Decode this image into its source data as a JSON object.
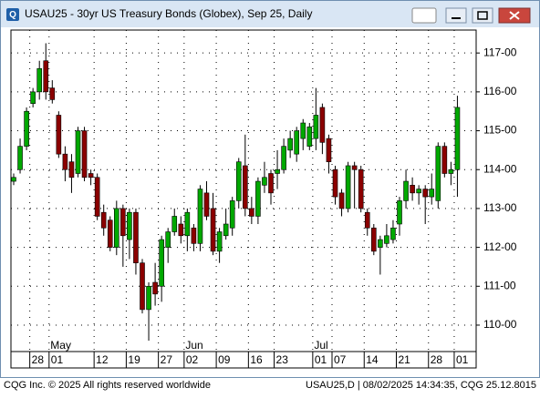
{
  "window": {
    "title": "USAU25 - 30yr US Treasury Bonds (Globex), Sep 25, Daily"
  },
  "chart_data": {
    "type": "candlestick",
    "categories": [
      null,
      null,
      null,
      "28",
      null,
      null,
      "01",
      null,
      null,
      null,
      null,
      null,
      null,
      "12",
      null,
      null,
      null,
      null,
      "19",
      null,
      null,
      null,
      null,
      "27",
      null,
      null,
      null,
      "02",
      null,
      null,
      null,
      null,
      "09",
      null,
      null,
      null,
      null,
      "16",
      null,
      null,
      null,
      "23",
      null,
      null,
      null,
      null,
      null,
      "01",
      null,
      null,
      "07",
      null,
      null,
      null,
      null,
      "14",
      null,
      null,
      null,
      null,
      "21",
      null,
      null,
      null,
      null,
      "28",
      null,
      null,
      null,
      "01"
    ],
    "months": [
      null,
      null,
      null,
      null,
      null,
      null,
      "May",
      null,
      null,
      null,
      null,
      null,
      null,
      null,
      null,
      null,
      null,
      null,
      null,
      null,
      null,
      null,
      null,
      null,
      null,
      null,
      null,
      "Jun",
      null,
      null,
      null,
      null,
      null,
      null,
      null,
      null,
      null,
      null,
      null,
      null,
      null,
      null,
      null,
      null,
      null,
      null,
      null,
      "Jul",
      null,
      null,
      null,
      null,
      null,
      null,
      null,
      null,
      null,
      null,
      null,
      null,
      null,
      null,
      null,
      null,
      null,
      null,
      null,
      null,
      null,
      null
    ],
    "open": [
      113.7,
      114.0,
      114.6,
      115.7,
      116.0,
      116.8,
      116.1,
      115.4,
      114.4,
      114.2,
      113.9,
      115.0,
      113.9,
      113.8,
      112.9,
      112.7,
      112.0,
      113.0,
      112.2,
      112.9,
      111.6,
      110.4,
      111.1,
      111.0,
      112.0,
      112.4,
      112.6,
      112.3,
      112.5,
      112.1,
      113.4,
      113.0,
      111.9,
      112.3,
      112.5,
      113.2,
      114.1,
      113.0,
      112.8,
      113.6,
      113.9,
      113.9,
      114.0,
      114.5,
      114.4,
      114.8,
      114.6,
      114.8,
      115.6,
      114.8,
      114.0,
      113.4,
      113.0,
      114.1,
      114.0,
      112.9,
      112.5,
      112.0,
      112.1,
      112.2,
      112.6,
      113.2,
      113.6,
      113.4,
      113.5,
      113.3,
      113.2,
      114.6,
      113.9,
      114.0
    ],
    "high": [
      113.9,
      114.8,
      115.6,
      116.1,
      116.8,
      117.25,
      116.3,
      115.5,
      114.6,
      114.4,
      115.1,
      115.1,
      114.0,
      113.9,
      113.1,
      112.8,
      113.2,
      113.1,
      113.0,
      113.0,
      111.7,
      111.1,
      111.6,
      112.3,
      112.5,
      113.0,
      112.8,
      113.0,
      112.6,
      113.6,
      113.7,
      113.4,
      112.5,
      113.0,
      113.3,
      114.3,
      114.9,
      113.3,
      113.8,
      114.2,
      114.0,
      114.5,
      114.8,
      115.0,
      115.1,
      115.3,
      115.2,
      116.1,
      115.7,
      114.9,
      114.1,
      113.5,
      114.2,
      114.2,
      114.1,
      113.0,
      112.6,
      112.3,
      112.6,
      112.7,
      113.3,
      114.0,
      113.8,
      113.6,
      113.6,
      113.9,
      114.7,
      114.7,
      114.2,
      115.9
    ],
    "low": [
      113.6,
      113.9,
      114.5,
      115.6,
      115.8,
      115.8,
      115.7,
      114.3,
      113.7,
      113.4,
      113.8,
      113.7,
      113.6,
      112.7,
      112.3,
      111.9,
      111.8,
      111.5,
      111.7,
      111.3,
      110.3,
      109.6,
      110.5,
      110.6,
      111.6,
      112.3,
      112.1,
      111.9,
      111.9,
      111.9,
      112.7,
      111.8,
      111.6,
      112.2,
      112.3,
      113.0,
      112.8,
      112.6,
      112.6,
      113.4,
      113.1,
      113.5,
      113.9,
      114.3,
      114.2,
      114.5,
      114.5,
      114.5,
      114.4,
      113.9,
      113.1,
      112.8,
      112.9,
      113.0,
      112.9,
      112.3,
      111.8,
      111.3,
      112.0,
      112.1,
      112.3,
      113.0,
      113.2,
      113.1,
      112.6,
      113.1,
      113.0,
      113.8,
      113.6,
      113.3
    ],
    "close": [
      113.8,
      114.6,
      115.5,
      116.0,
      116.6,
      116.0,
      115.8,
      114.4,
      114.0,
      113.8,
      115.0,
      113.8,
      113.8,
      112.8,
      112.5,
      112.0,
      113.0,
      112.3,
      112.9,
      111.6,
      110.4,
      111.0,
      110.8,
      112.2,
      112.4,
      112.8,
      112.3,
      112.9,
      112.1,
      113.5,
      112.8,
      111.9,
      112.4,
      112.6,
      113.2,
      114.2,
      113.0,
      112.8,
      113.7,
      113.8,
      113.4,
      114.0,
      114.6,
      114.8,
      115.0,
      115.2,
      115.1,
      115.4,
      114.7,
      114.2,
      113.3,
      113.0,
      114.1,
      114.0,
      113.0,
      112.5,
      111.9,
      112.2,
      112.3,
      112.5,
      113.2,
      113.7,
      113.4,
      113.5,
      113.3,
      113.5,
      114.6,
      113.9,
      114.0,
      115.6
    ],
    "ylim": [
      109.32,
      117.59
    ],
    "yticks": [
      {
        "value": 110,
        "label": "110-00"
      },
      {
        "value": 111,
        "label": "111-00"
      },
      {
        "value": 112,
        "label": "112-00"
      },
      {
        "value": 113,
        "label": "113-00"
      },
      {
        "value": 114,
        "label": "114-00"
      },
      {
        "value": 115,
        "label": "115-00"
      },
      {
        "value": 116,
        "label": "116-00"
      },
      {
        "value": 117,
        "label": "117-00"
      }
    ],
    "grid": true,
    "up_color": "#00a800",
    "down_color": "#8b0000"
  },
  "footer": {
    "left": "CQG Inc. © 2025 All rights reserved worldwide",
    "right": "USAU25,D | 08/02/2025 14:34:35, CQG 25.12.8015"
  }
}
